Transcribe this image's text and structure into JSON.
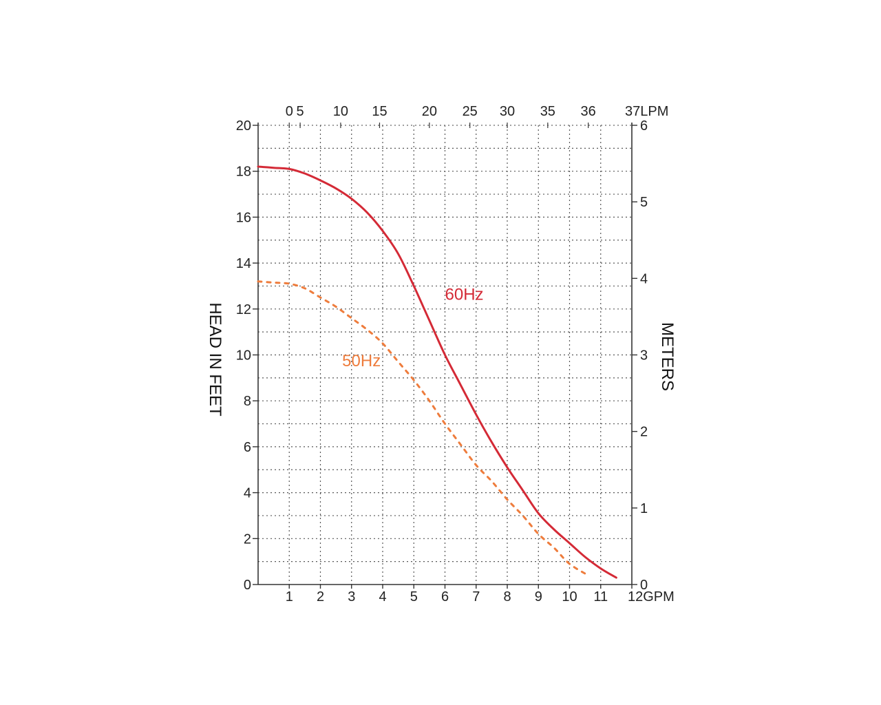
{
  "chart_data": {
    "type": "line",
    "xlabel": "GPM",
    "x_top_label": "LPM",
    "ylabel": "HEAD IN FEET",
    "y2label": "METERS",
    "xlim": [
      0,
      12
    ],
    "ylim": [
      0,
      20
    ],
    "y2lim": [
      0,
      6
    ],
    "grid": true,
    "x_ticks": [
      1,
      2,
      3,
      4,
      5,
      6,
      7,
      8,
      9,
      10,
      11,
      12
    ],
    "x_tick_labels": [
      "1",
      "2",
      "3",
      "4",
      "5",
      "6",
      "7",
      "8",
      "9",
      "10",
      "11",
      "12GPM"
    ],
    "y_ticks": [
      0,
      2,
      4,
      6,
      8,
      10,
      12,
      14,
      16,
      18,
      20
    ],
    "y_tick_labels": [
      "0",
      "2",
      "4",
      "6",
      "8",
      "10",
      "12",
      "14",
      "16",
      "18",
      "20"
    ],
    "y2_ticks": [
      0,
      1,
      2,
      3,
      4,
      5,
      6
    ],
    "y2_tick_labels": [
      "0",
      "1",
      "2",
      "3",
      "4",
      "5",
      "6"
    ],
    "x_top_tick_labels": [
      {
        "gpm": 1.0,
        "label": "0"
      },
      {
        "gpm": 1.35,
        "label": "5"
      },
      {
        "gpm": 2.65,
        "label": "10"
      },
      {
        "gpm": 3.9,
        "label": "15"
      },
      {
        "gpm": 5.5,
        "label": "20"
      },
      {
        "gpm": 6.8,
        "label": "25"
      },
      {
        "gpm": 8.0,
        "label": "30"
      },
      {
        "gpm": 9.3,
        "label": "35"
      },
      {
        "gpm": 10.6,
        "label": "36"
      },
      {
        "gpm": 12.0,
        "label": "37LPM"
      }
    ],
    "series": [
      {
        "name": "60Hz",
        "color": "#d42a36",
        "style": "solid",
        "x": [
          0,
          0.5,
          1.0,
          1.5,
          2.0,
          2.5,
          3.0,
          3.5,
          4.0,
          4.5,
          5.0,
          5.5,
          6.0,
          6.5,
          7.0,
          7.5,
          8.0,
          8.5,
          9.0,
          9.5,
          10.0,
          10.5,
          11.0,
          11.5
        ],
        "values": [
          18.2,
          18.15,
          18.1,
          17.9,
          17.6,
          17.25,
          16.8,
          16.2,
          15.4,
          14.4,
          13.0,
          11.5,
          10.0,
          8.7,
          7.4,
          6.2,
          5.1,
          4.1,
          3.1,
          2.4,
          1.8,
          1.2,
          0.7,
          0.3
        ]
      },
      {
        "name": "50Hz",
        "color": "#ee7c3c",
        "style": "dotted",
        "x": [
          0,
          0.5,
          1.0,
          1.5,
          2.0,
          2.5,
          3.0,
          3.5,
          4.0,
          4.5,
          5.0,
          5.5,
          6.0,
          6.5,
          7.0,
          7.5,
          8.0,
          8.5,
          9.0,
          9.5,
          10.0,
          10.6
        ],
        "values": [
          13.2,
          13.15,
          13.1,
          12.9,
          12.5,
          12.1,
          11.6,
          11.1,
          10.5,
          9.7,
          8.9,
          8.0,
          7.0,
          6.1,
          5.2,
          4.5,
          3.7,
          3.0,
          2.2,
          1.6,
          0.9,
          0.4
        ]
      }
    ],
    "annotations": [
      {
        "text": "60Hz",
        "x": 6.0,
        "y": 12.4,
        "color": "#d42a36"
      },
      {
        "text": "50Hz",
        "x": 2.7,
        "y": 9.5,
        "color": "#ee7c3c"
      }
    ]
  }
}
